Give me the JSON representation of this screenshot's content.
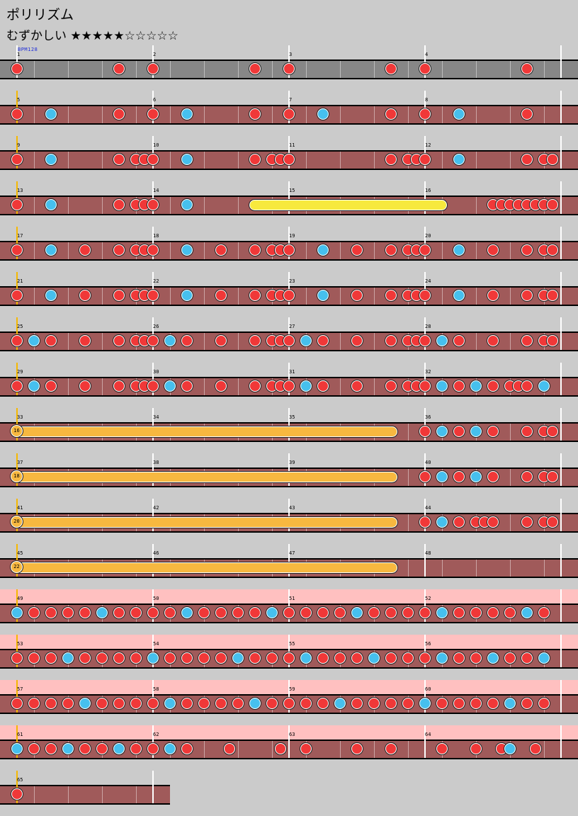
{
  "song": {
    "title": "ポリリズム",
    "difficulty_label": "むずかしい",
    "stars": "★★★★★☆☆☆☆☆",
    "bpm_label": "BPM128"
  },
  "rows": [
    {
      "measures": [
        "1",
        "2",
        "3",
        "4"
      ],
      "lane": "gray",
      "don": [
        0,
        6,
        8,
        14,
        16,
        22,
        24,
        30
      ],
      "ka": []
    },
    {
      "measures": [
        "5",
        "6",
        "7",
        "8"
      ],
      "lane": "red",
      "don": [
        0,
        6,
        8,
        14,
        16,
        22,
        24,
        30
      ],
      "ka": [
        2,
        10,
        18,
        26
      ]
    },
    {
      "measures": [
        "9",
        "10",
        "11",
        "12"
      ],
      "lane": "red",
      "don": [
        0,
        6,
        7,
        7.5,
        8,
        14,
        15,
        15.5,
        16,
        22,
        23,
        23.5,
        24,
        30,
        31,
        31.5
      ],
      "ka": [
        2,
        10,
        26
      ]
    },
    {
      "measures": [
        "13",
        "14",
        "15",
        "16"
      ],
      "lane": "red",
      "don": [
        0,
        6,
        7,
        7.5,
        8,
        28,
        28.5,
        29,
        29.5,
        30,
        30.5,
        31,
        31.5
      ],
      "ka": [
        2,
        10
      ],
      "roll": [
        14,
        25.2
      ]
    },
    {
      "measures": [
        "17",
        "18",
        "19",
        "20"
      ],
      "lane": "red",
      "don": [
        0,
        4,
        6,
        7,
        7.5,
        8,
        12,
        14,
        15,
        15.5,
        16,
        20,
        22,
        23,
        23.5,
        24,
        28,
        30,
        31,
        31.5
      ],
      "ka": [
        2,
        10,
        18,
        26
      ]
    },
    {
      "measures": [
        "21",
        "22",
        "23",
        "24"
      ],
      "lane": "red",
      "don": [
        0,
        4,
        6,
        7,
        7.5,
        8,
        12,
        14,
        15,
        15.5,
        16,
        20,
        22,
        23,
        23.5,
        24,
        28,
        30,
        31,
        31.5
      ],
      "ka": [
        2,
        10,
        18,
        26
      ]
    },
    {
      "measures": [
        "25",
        "26",
        "27",
        "28"
      ],
      "lane": "red",
      "don": [
        0,
        2,
        4,
        6,
        7,
        7.5,
        8,
        10,
        12,
        14,
        15,
        15.5,
        16,
        18,
        20,
        22,
        23,
        23.5,
        24,
        26,
        28,
        30,
        31,
        31.5
      ],
      "ka": [
        1,
        9,
        17,
        25
      ]
    },
    {
      "measures": [
        "29",
        "30",
        "31",
        "32"
      ],
      "lane": "red",
      "don": [
        0,
        2,
        4,
        6,
        7,
        7.5,
        8,
        10,
        12,
        14,
        15,
        15.5,
        16,
        18,
        20,
        22,
        23,
        23.5,
        24,
        26,
        28,
        29,
        29.5,
        30
      ],
      "ka": [
        1,
        9,
        17,
        25,
        27,
        31
      ]
    },
    {
      "measures": [
        "33",
        "34",
        "35",
        "36"
      ],
      "lane": "red",
      "balloon": [
        0,
        22.3
      ],
      "balloon_count": "16",
      "don": [
        24,
        26,
        28,
        30,
        31,
        31.5
      ],
      "ka": [
        25,
        27
      ]
    },
    {
      "measures": [
        "37",
        "38",
        "39",
        "40"
      ],
      "lane": "red",
      "balloon": [
        0,
        22.3
      ],
      "balloon_count": "18",
      "don": [
        24,
        26,
        28,
        30,
        31,
        31.5
      ],
      "ka": [
        25,
        27
      ]
    },
    {
      "measures": [
        "41",
        "42",
        "43",
        "44"
      ],
      "lane": "red",
      "balloon": [
        0,
        22.3
      ],
      "balloon_count": "20",
      "don": [
        24,
        26,
        27,
        27.5,
        28,
        30,
        31,
        31.5
      ],
      "ka": [
        25
      ]
    },
    {
      "measures": [
        "45",
        "46",
        "47",
        "48"
      ],
      "lane": "red",
      "balloon": [
        0,
        22.3
      ],
      "balloon_count": "22",
      "don": [],
      "ka": []
    },
    {
      "measures": [
        "49",
        "50",
        "51",
        "52"
      ],
      "lane": "red",
      "hi": true,
      "don": [
        1,
        2,
        3,
        4,
        6,
        7,
        8,
        9,
        11,
        12,
        13,
        14,
        16,
        17,
        18,
        19,
        21,
        22,
        23,
        24,
        26,
        27,
        28,
        29,
        31
      ],
      "ka": [
        0,
        5,
        10,
        15,
        20,
        25,
        30
      ]
    },
    {
      "measures": [
        "53",
        "54",
        "55",
        "56"
      ],
      "lane": "red",
      "hi": true,
      "don": [
        0,
        1,
        2,
        4,
        5,
        6,
        7,
        9,
        10,
        11,
        12,
        14,
        15,
        16,
        18,
        19,
        20,
        22,
        23,
        24,
        26,
        27,
        29,
        30
      ],
      "ka": [
        3,
        8,
        13,
        17,
        21,
        25,
        28,
        31
      ]
    },
    {
      "measures": [
        "57",
        "58",
        "59",
        "60"
      ],
      "lane": "red",
      "hi": true,
      "don": [
        0,
        1,
        2,
        3,
        5,
        6,
        7,
        8,
        10,
        11,
        12,
        13,
        15,
        16,
        17,
        18,
        20,
        21,
        22,
        23,
        25,
        26,
        27,
        28,
        30,
        31
      ],
      "ka": [
        4,
        9,
        14,
        19,
        24,
        29
      ]
    },
    {
      "measures": [
        "61",
        "62",
        "63",
        "64"
      ],
      "lane": "red",
      "hi": true,
      "don": [
        1,
        2,
        4,
        5,
        7,
        8,
        10,
        12.5,
        15.5,
        17,
        20,
        22,
        25,
        27,
        28.5,
        30.5
      ],
      "ka": [
        0,
        3,
        6,
        9,
        29
      ]
    },
    {
      "measures": [
        "65"
      ],
      "lane": "red",
      "partial": true,
      "don": [
        0
      ],
      "ka": []
    }
  ]
}
